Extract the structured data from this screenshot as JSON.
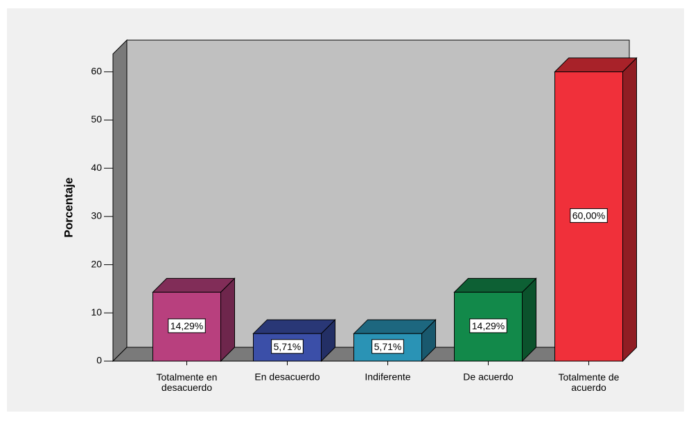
{
  "chart_data": {
    "type": "bar3d",
    "y_label": "Porcentaje",
    "categories": [
      "Totalmente en desacuerdo",
      "En desacuerdo",
      "Indiferente",
      "De acuerdo",
      "Totalmente de acuerdo"
    ],
    "values": [
      14.29,
      5.71,
      5.71,
      14.29,
      60.0
    ],
    "value_labels": [
      "14,29%",
      "5,71%",
      "5,71%",
      "14,29%",
      "60,00%"
    ],
    "colors": [
      "#b8407e",
      "#3b4fa8",
      "#2a93b5",
      "#12894a",
      "#f0303a"
    ],
    "ylim": [
      0,
      63.7
    ],
    "yticks": [
      0,
      10,
      20,
      30,
      40,
      50,
      60
    ],
    "grid": false
  }
}
